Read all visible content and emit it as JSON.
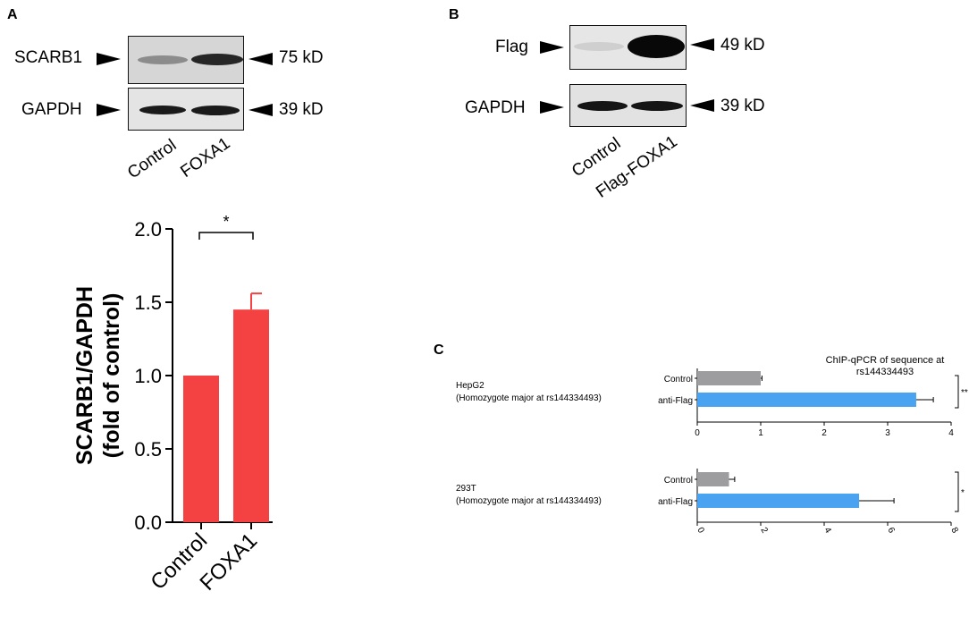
{
  "panels": {
    "a": "A",
    "b": "B",
    "c": "C"
  },
  "panel_a": {
    "blots": [
      {
        "label": "SCARB1",
        "kd": "75 kD"
      },
      {
        "label": "GAPDH",
        "kd": "39 kD"
      }
    ],
    "lanes": [
      "Control",
      "FOXA1"
    ]
  },
  "panel_b": {
    "blots": [
      {
        "label": "Flag",
        "kd": "49 kD"
      },
      {
        "label": "GAPDH",
        "kd": "39 kD"
      }
    ],
    "lanes": [
      "Control",
      "Flag-FOXA1"
    ]
  },
  "chart_data": [
    {
      "type": "bar",
      "panel": "A",
      "categories": [
        "Control",
        "FOXA1"
      ],
      "values": [
        1.0,
        1.45
      ],
      "error": [
        0,
        0.11
      ],
      "ylabel_line1": "SCARB1/GAPDH",
      "ylabel_line2": "(fold of control)",
      "ylim": [
        0,
        2.0
      ],
      "yticks": [
        "0.0",
        "0.5",
        "1.0",
        "1.5",
        "2.0"
      ],
      "significance": "*",
      "color": "#f44242"
    },
    {
      "type": "bar",
      "orientation": "horizontal",
      "panel": "C",
      "title_line1": "ChIP-qPCR of sequence at",
      "title_line2": "rs144334493",
      "groups": [
        {
          "name_line1": "HepG2",
          "name_line2": "(Homozygote major at rs144334493)",
          "categories": [
            "Control",
            "anti-Flag"
          ],
          "values": [
            1.0,
            3.45
          ],
          "error": [
            0.02,
            0.27
          ],
          "xlim": [
            0,
            4
          ],
          "xticks": [
            "0",
            "1",
            "2",
            "3",
            "4"
          ],
          "significance": "**"
        },
        {
          "name_line1": "293T",
          "name_line2": "(Homozygote major at rs144334493)",
          "categories": [
            "Control",
            "anti-Flag"
          ],
          "values": [
            1.0,
            5.1
          ],
          "error": [
            0.18,
            1.1
          ],
          "xlim": [
            0,
            8
          ],
          "xticks": [
            "0",
            "2",
            "4",
            "6",
            "8"
          ],
          "significance": "*"
        }
      ],
      "colors": {
        "control": "#9d9d9f",
        "treated": "#4aa3f0"
      }
    }
  ]
}
